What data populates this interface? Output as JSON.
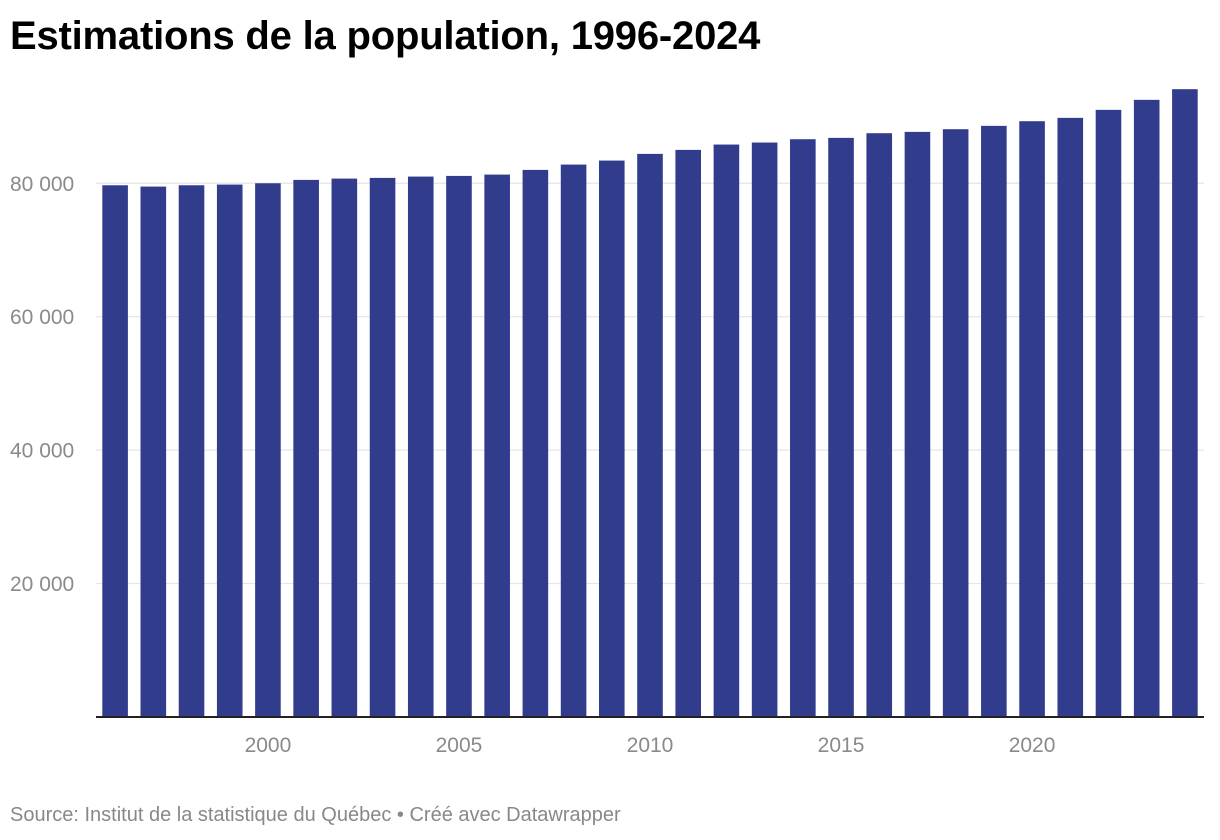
{
  "header": {
    "title": "Estimations de la population, 1996-2024"
  },
  "footer": {
    "source": "Source: Institut de la statistique du Québec",
    "separator": " • ",
    "credit": "Créé avec Datawrapper"
  },
  "colors": {
    "bar": "#323c8c",
    "grid": "#e5e5e5",
    "baseline": "#222222",
    "tick_label": "#8a8a8a"
  },
  "chart_data": {
    "type": "bar",
    "title": "Estimations de la population, 1996-2024",
    "xlabel": "",
    "ylabel": "",
    "ylim": [
      0,
      96000
    ],
    "grid": true,
    "categories": [
      1996,
      1997,
      1998,
      1999,
      2000,
      2001,
      2002,
      2003,
      2004,
      2005,
      2006,
      2007,
      2008,
      2009,
      2010,
      2011,
      2012,
      2013,
      2014,
      2015,
      2016,
      2017,
      2018,
      2019,
      2020,
      2021,
      2022,
      2023,
      2024
    ],
    "values": [
      79700,
      79500,
      79700,
      79800,
      80000,
      80500,
      80700,
      80800,
      81000,
      81100,
      81300,
      82000,
      82800,
      83400,
      84400,
      85000,
      85800,
      86100,
      86600,
      86800,
      87500,
      87700,
      88100,
      88600,
      89300,
      89800,
      91000,
      92500,
      94100
    ],
    "y_ticks": [
      {
        "value": 20000,
        "label": "20 000"
      },
      {
        "value": 40000,
        "label": "40 000"
      },
      {
        "value": 60000,
        "label": "60 000"
      },
      {
        "value": 80000,
        "label": "80 000"
      }
    ],
    "x_ticks": [
      {
        "value": 2000,
        "label": "2000"
      },
      {
        "value": 2005,
        "label": "2005"
      },
      {
        "value": 2010,
        "label": "2010"
      },
      {
        "value": 2015,
        "label": "2015"
      },
      {
        "value": 2020,
        "label": "2020"
      }
    ]
  }
}
